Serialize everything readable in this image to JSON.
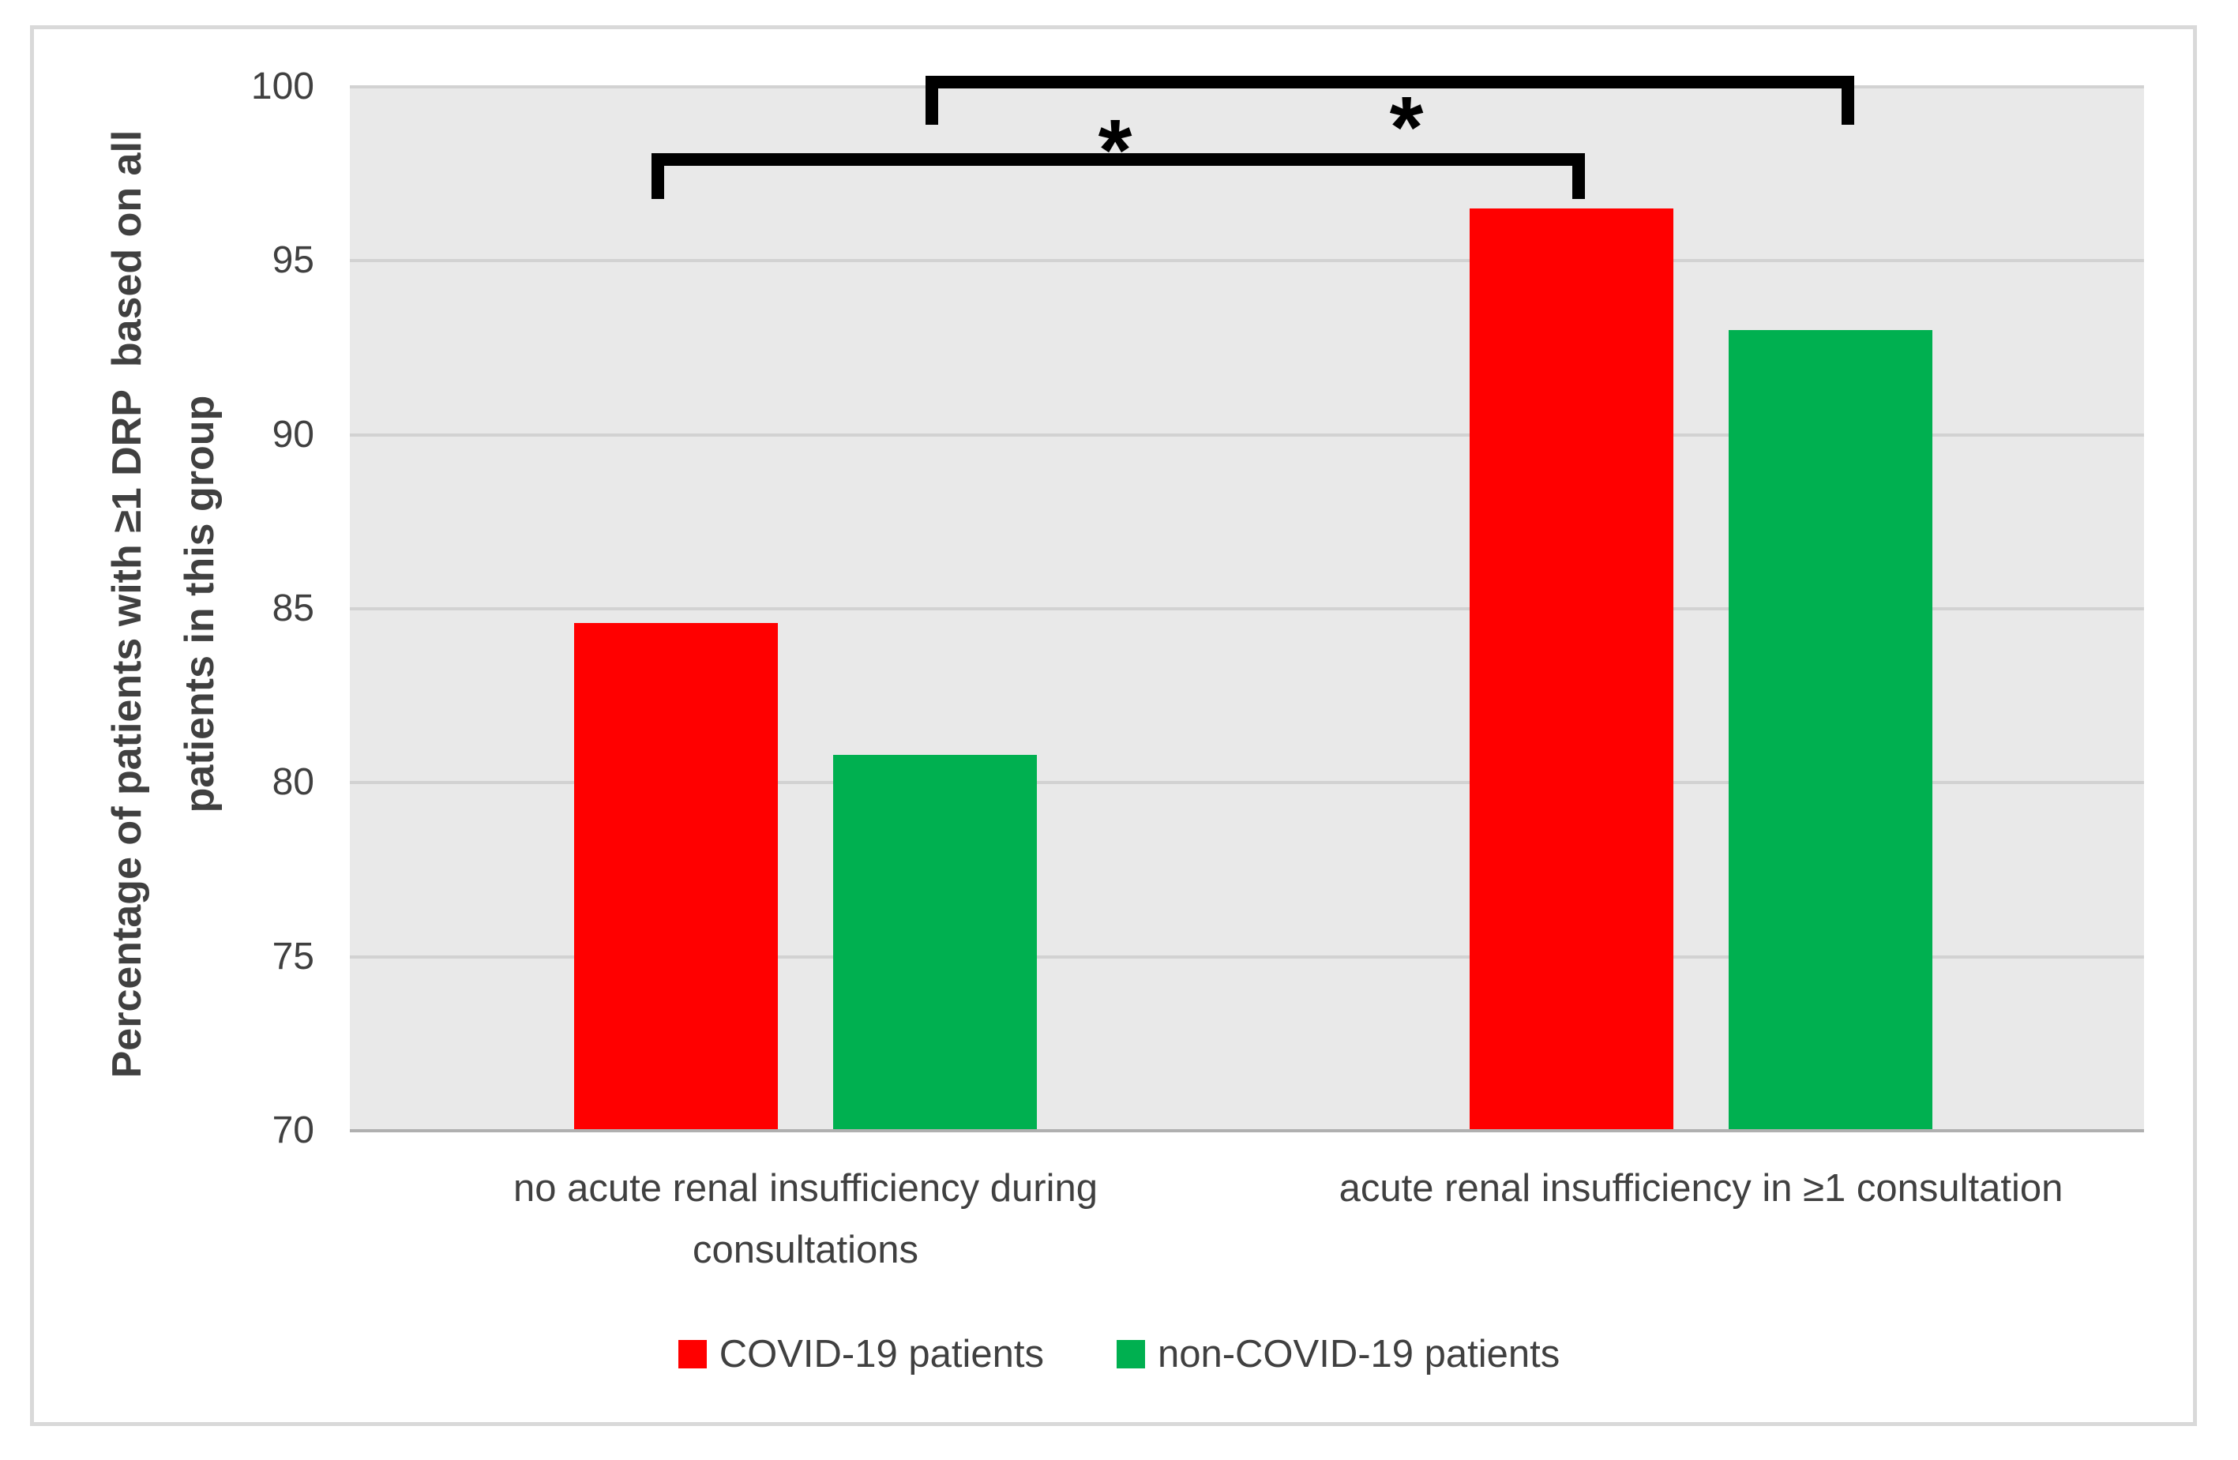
{
  "chart_data": {
    "type": "bar",
    "title": "",
    "categories": [
      {
        "label": "no acute renal insufficiency during consultations",
        "lines": [
          "no acute renal insufficiency during",
          "consultations"
        ]
      },
      {
        "label": "acute renal insufficiency in ≥1 consultation",
        "lines": [
          "acute renal insufficiency in ≥1 consultation"
        ]
      }
    ],
    "series": [
      {
        "name": "COVID-19 patients",
        "color": "#ff0000",
        "values": [
          84.6,
          96.5
        ]
      },
      {
        "name": "non-COVID-19 patients",
        "color": "#00b050",
        "values": [
          80.8,
          93.0
        ]
      }
    ],
    "ylabel": "Percentage of patients with ≥1 DRP  based on all patients in this group",
    "ylabel_lines": [
      "Percentage of patients with ≥1 DRP  based on all",
      "patients in this group"
    ],
    "ylim": [
      70,
      100
    ],
    "yticks": [
      70,
      75,
      80,
      85,
      90,
      95,
      100
    ],
    "grid": true,
    "legend_position": "bottom",
    "annotations": [
      {
        "type": "significance_bracket",
        "label": "*",
        "series": "COVID-19 patients",
        "between_categories": [
          0,
          1
        ]
      },
      {
        "type": "significance_bracket",
        "label": "*",
        "series": "non-COVID-19 patients",
        "between_categories": [
          0,
          1
        ]
      }
    ]
  },
  "colors": {
    "plot_background": "#e9e9e9",
    "gridline": "#d2d2d2",
    "axis_line": "#b0b0b0",
    "text": "#404040",
    "bracket": "#000000",
    "figure_border": "#d9d9d9",
    "covid_red": "#ff0000",
    "non_covid_green": "#00b050"
  }
}
